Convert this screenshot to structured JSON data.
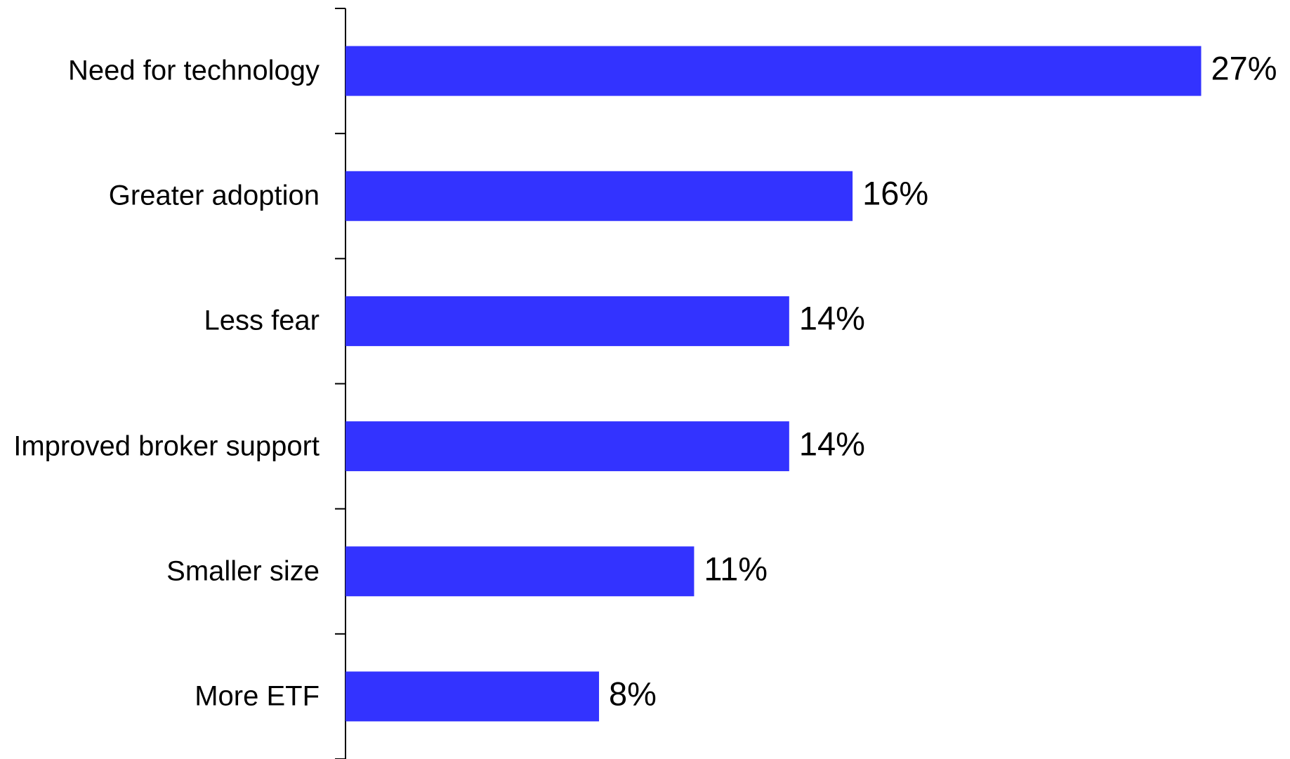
{
  "chart_data": {
    "type": "bar",
    "orientation": "horizontal",
    "categories": [
      "Need for technology",
      "Greater adoption",
      "Less fear",
      "Improved broker support",
      "Smaller size",
      "More ETF"
    ],
    "values": [
      27,
      16,
      14,
      14,
      11,
      8
    ],
    "value_labels": [
      "27%",
      "16%",
      "14%",
      "14%",
      "11%",
      "8%"
    ],
    "color": "#3333ff"
  }
}
